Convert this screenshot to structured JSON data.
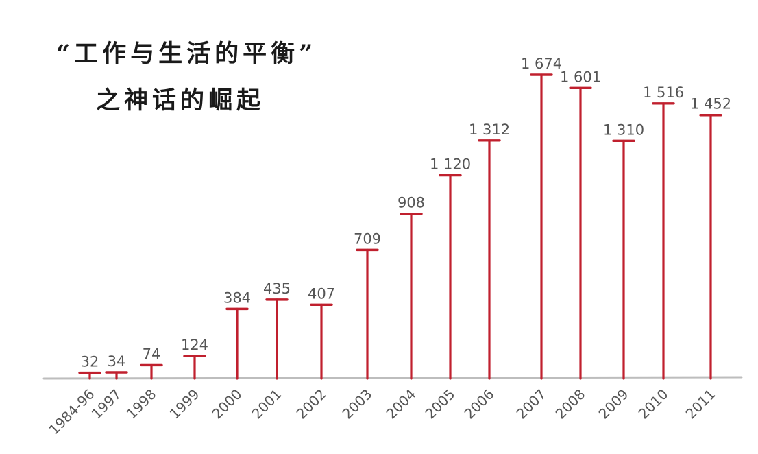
{
  "chart_data": {
    "type": "bar",
    "title": [
      "“工作与生活的平衡”",
      "之神话的崛起"
    ],
    "xlabel": "",
    "ylabel": "",
    "categories": [
      "1984-96",
      "1997",
      "1998",
      "1999",
      "2000",
      "2001",
      "2002",
      "2003",
      "2004",
      "2005",
      "2006",
      "2007",
      "2008",
      "2009",
      "2010",
      "2011"
    ],
    "values": [
      32,
      34,
      74,
      124,
      384,
      435,
      407,
      709,
      908,
      1120,
      1312,
      1674,
      1601,
      1310,
      1516,
      1452
    ],
    "value_labels": [
      "32",
      "34",
      "74",
      "124",
      "384",
      "435",
      "407",
      "709",
      "908",
      "1 120",
      "1 312",
      "1 674",
      "1 601",
      "1 310",
      "1 516",
      "1 452"
    ],
    "ylim": [
      0,
      1674
    ],
    "grid": false,
    "legend": "none",
    "colors": {
      "bar": "#c0202e",
      "baseline": "#bdbdbd",
      "text": "#555555",
      "title": "#1a1a1a"
    }
  }
}
